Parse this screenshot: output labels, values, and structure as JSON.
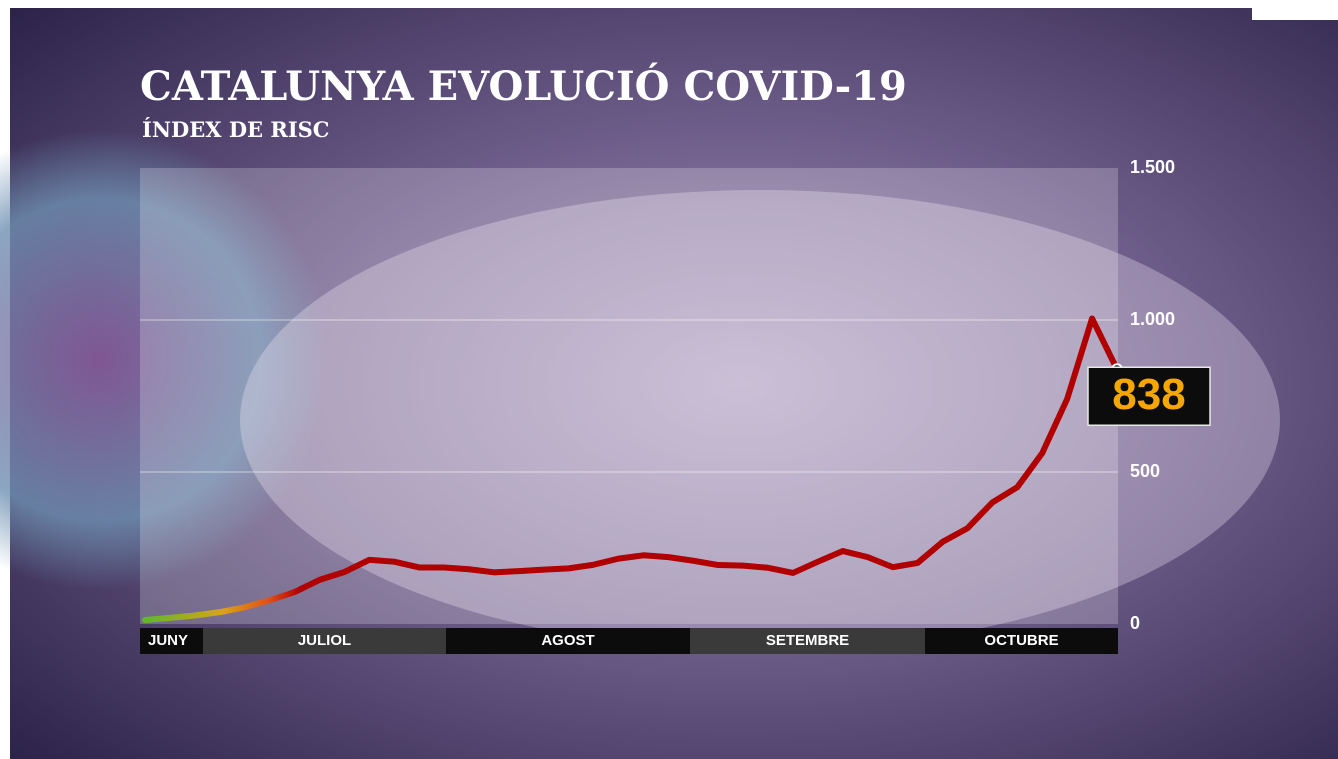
{
  "chart_data": {
    "type": "line",
    "title": "CATALUNYA EVOLUCIÓ COVID-19",
    "subtitle": "ÍNDEX DE RISC",
    "months": [
      "JUNY",
      "JULIOL",
      "AGOST",
      "SETEMBRE",
      "OCTUBRE"
    ],
    "values": [
      13,
      20,
      28,
      39,
      55,
      78,
      105,
      145,
      171,
      211,
      205,
      186,
      186,
      180,
      170,
      174,
      179,
      183,
      195,
      215,
      226,
      220,
      208,
      194,
      192,
      185,
      168,
      205,
      240,
      220,
      187,
      201,
      270,
      315,
      400,
      450,
      562,
      740,
      1005,
      838
    ],
    "color": "#b00000",
    "ylim": [
      0,
      1500
    ],
    "yticks": [
      0,
      500,
      {
        "value": 1000,
        "label": "1.000"
      },
      {
        "value": 1500,
        "label": "1.500"
      }
    ],
    "grid": true
  }
}
